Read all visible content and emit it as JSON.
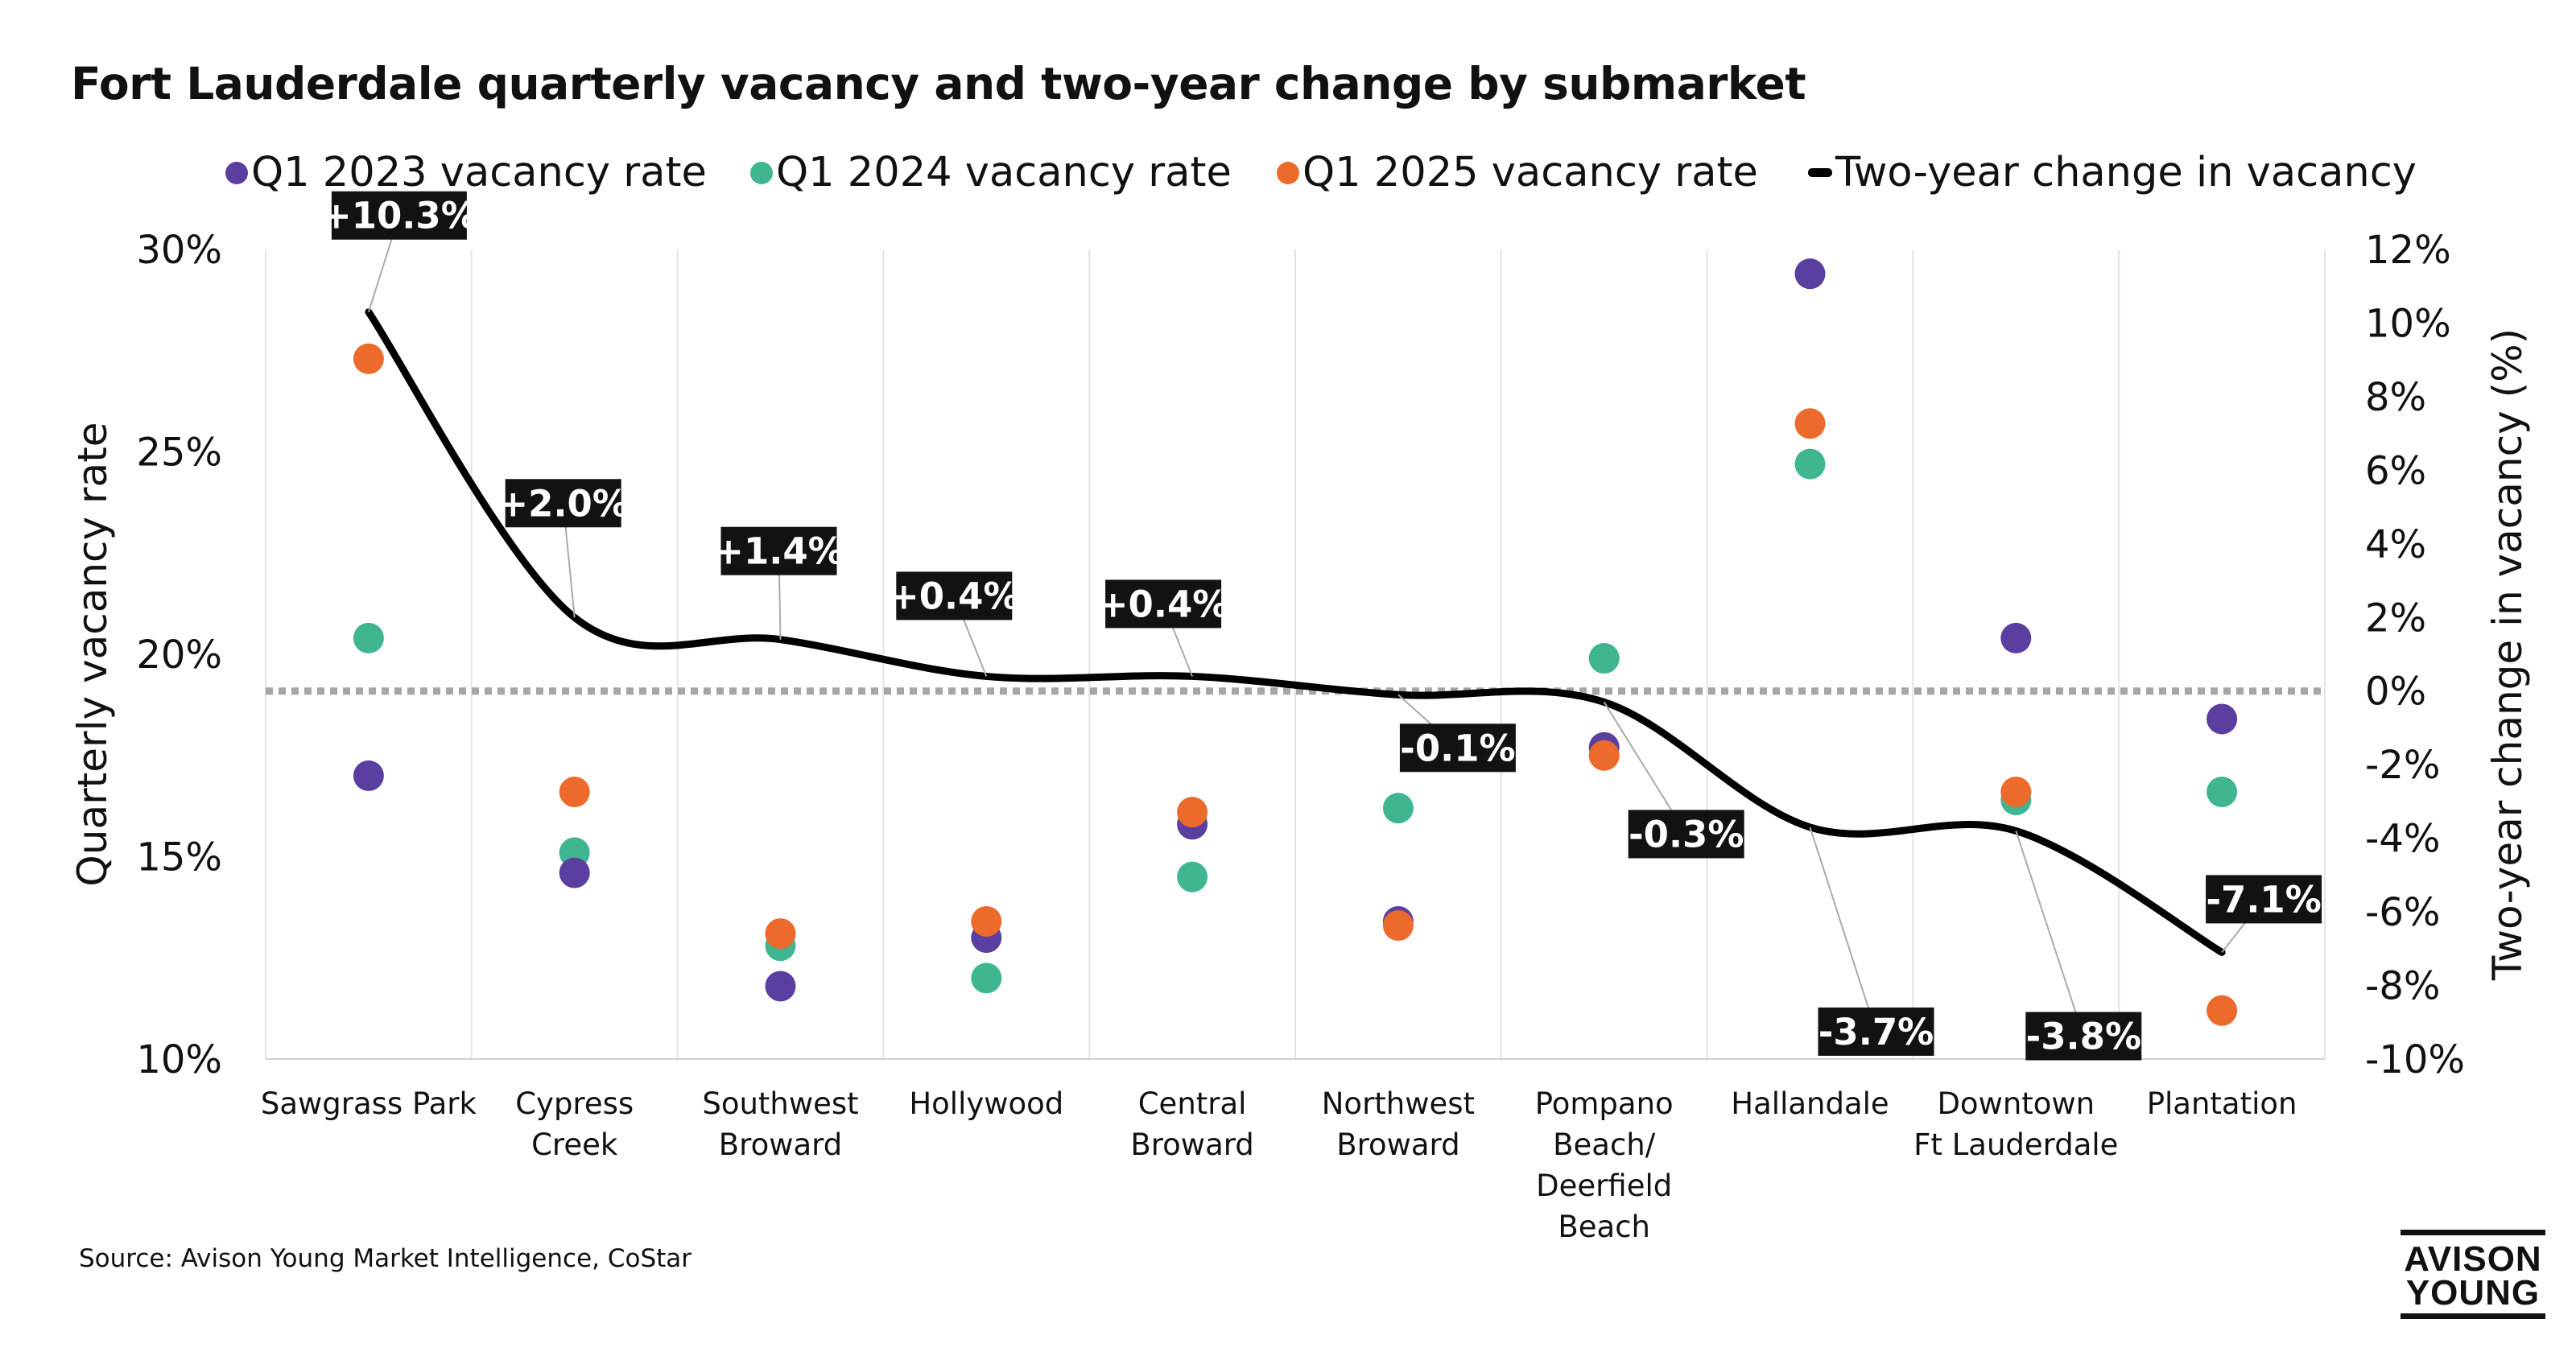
{
  "title": "Fort Lauderdale quarterly vacancy and two-year change by submarket",
  "source": "Source: Avison Young Market Intelligence, CoStar",
  "logo": {
    "line1": "AVISON",
    "line2": "YOUNG"
  },
  "chart_data": {
    "type": "scatter",
    "title": "Fort Lauderdale quarterly vacancy and two-year change by submarket",
    "categories": [
      [
        "Sawgrass Park"
      ],
      [
        "Cypress",
        "Creek"
      ],
      [
        "Southwest",
        "Broward"
      ],
      [
        "Hollywood"
      ],
      [
        "Central",
        "Broward"
      ],
      [
        "Northwest",
        "Broward"
      ],
      [
        "Pompano",
        "Beach/",
        "Deerfield",
        "Beach"
      ],
      [
        "Hallandale"
      ],
      [
        "Downtown",
        "Ft Lauderdale"
      ],
      [
        "Plantation"
      ]
    ],
    "ylabel": "Quarterly vacancy rate",
    "y2label": "Two-year change in vacancy (%)",
    "ylim": [
      10,
      30
    ],
    "yticks": [
      10,
      15,
      20,
      25,
      30
    ],
    "ytick_labels": [
      "10%",
      "15%",
      "20%",
      "25%",
      "30%"
    ],
    "y2lim": [
      -10,
      12
    ],
    "y2ticks": [
      -10,
      -8,
      -6,
      -4,
      -2,
      0,
      2,
      4,
      6,
      8,
      10,
      12
    ],
    "y2tick_labels": [
      "-10%",
      "-8%",
      "-6%",
      "-4%",
      "-2%",
      "0%",
      "2%",
      "4%",
      "6%",
      "8%",
      "10%",
      "12%"
    ],
    "series": [
      {
        "name": "Q1 2023 vacancy rate",
        "color": "#5b3fa0",
        "axis": "left",
        "values": [
          17.0,
          14.6,
          11.8,
          13.0,
          15.8,
          13.4,
          17.7,
          29.4,
          20.4,
          18.4
        ]
      },
      {
        "name": "Q1 2024 vacancy rate",
        "color": "#3fb592",
        "axis": "left",
        "values": [
          20.4,
          15.1,
          12.8,
          12.0,
          14.5,
          16.2,
          19.9,
          24.7,
          16.4,
          16.6
        ]
      },
      {
        "name": "Q1 2025 vacancy rate",
        "color": "#ec6a2b",
        "axis": "left",
        "values": [
          27.3,
          16.6,
          13.1,
          13.4,
          16.1,
          13.3,
          17.5,
          25.7,
          16.6,
          11.2
        ]
      },
      {
        "name": "Two-year change in vacancy",
        "type": "line",
        "color": "#000000",
        "axis": "right",
        "values": [
          10.3,
          2.0,
          1.4,
          0.4,
          0.4,
          -0.1,
          -0.3,
          -3.7,
          -3.8,
          -7.1
        ],
        "labels": [
          "+10.3%",
          "+2.0%",
          "+1.4%",
          "+0.4%",
          "+0.4%",
          "-0.1%",
          "-0.3%",
          "-3.7%",
          "-3.8%",
          "-7.1%"
        ]
      }
    ],
    "reference_line": {
      "axis": "right",
      "value": 0,
      "style": "dotted",
      "color": "#a6a6a6"
    },
    "legend_position": "top",
    "grid": "vertical-category-separators"
  }
}
